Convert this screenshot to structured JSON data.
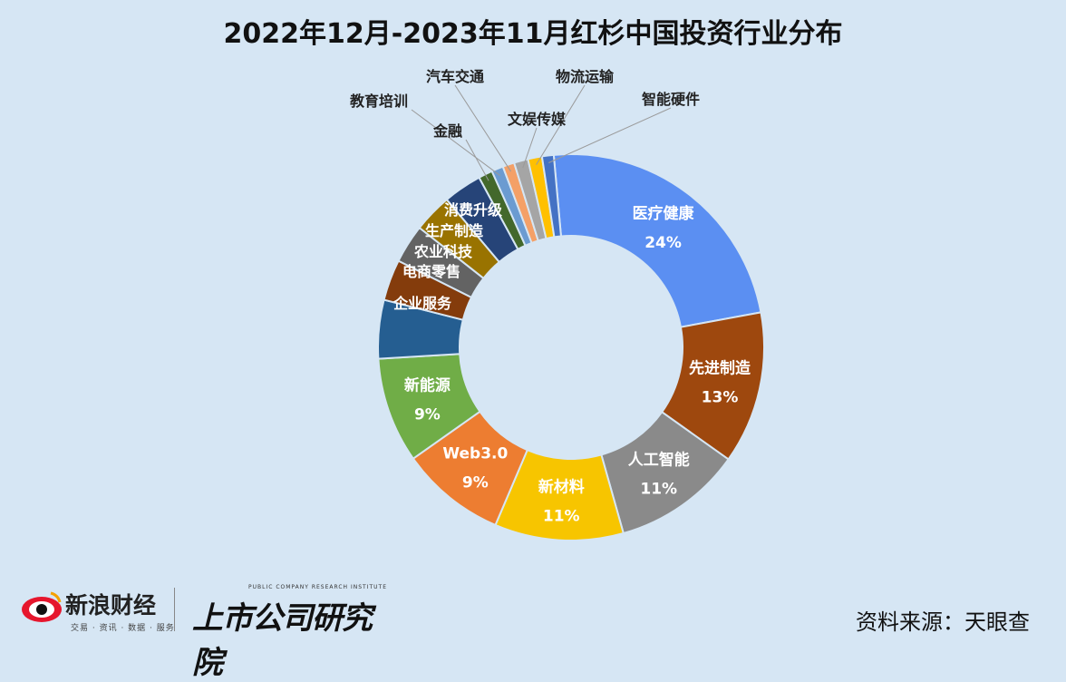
{
  "title": "2022年12月-2023年11月红杉中国投资行业分布",
  "source": "资料来源：天眼查",
  "logos": {
    "sina_name": "新浪财经",
    "sina_sub": "交易 · 资讯 · 数据 · 服务",
    "institute_name": "上市公司研究院",
    "institute_sub": "PUBLIC COMPANY RESEARCH INSTITUTE"
  },
  "chart_data": {
    "type": "pie",
    "title": "2022年12月-2023年11月红杉中国投资行业分布",
    "slices": [
      {
        "name": "医疗健康",
        "value": 24,
        "label": "24%",
        "color": "#5b8ff2"
      },
      {
        "name": "先进制造",
        "value": 13,
        "label": "13%",
        "color": "#9e480e"
      },
      {
        "name": "人工智能",
        "value": 11,
        "label": "11%",
        "color": "#8a8a8a"
      },
      {
        "name": "新材料",
        "value": 11,
        "label": "11%",
        "color": "#f7c500"
      },
      {
        "name": "Web3.0",
        "value": 9,
        "label": "9%",
        "color": "#ed7d31"
      },
      {
        "name": "新能源",
        "value": 9,
        "label": "9%",
        "color": "#70ad47"
      },
      {
        "name": "企业服务",
        "value": 5,
        "label": "",
        "color": "#255e91"
      },
      {
        "name": "电商零售",
        "value": 3.5,
        "label": "",
        "color": "#843c0c"
      },
      {
        "name": "农业科技",
        "value": 3.3,
        "label": "",
        "color": "#636363"
      },
      {
        "name": "生产制造",
        "value": 3.3,
        "label": "",
        "color": "#997300"
      },
      {
        "name": "消费升级",
        "value": 3.3,
        "label": "",
        "color": "#264478"
      },
      {
        "name": "金融",
        "value": 1.2,
        "label": "",
        "color": "#43682b"
      },
      {
        "name": "教育培训",
        "value": 1.0,
        "label": "",
        "color": "#6b9bd1"
      },
      {
        "name": "汽车交通",
        "value": 1.0,
        "label": "",
        "color": "#f4a067"
      },
      {
        "name": "文娱传媒",
        "value": 1.2,
        "label": "",
        "color": "#a5a5a5"
      },
      {
        "name": "物流运输",
        "value": 1.2,
        "label": "",
        "color": "#ffc000"
      },
      {
        "name": "智能硬件",
        "value": 1.0,
        "label": "",
        "color": "#4472c4"
      }
    ],
    "legend": "none"
  }
}
